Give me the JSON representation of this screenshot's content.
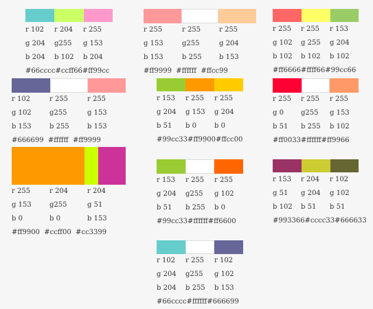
{
  "palettes": [
    {
      "colors": [
        "#66cccc",
        "#ccff66",
        "#ff99cc"
      ],
      "r": [
        "r 102",
        "r 204",
        "r 255"
      ],
      "g": [
        "g 204",
        "g255",
        "g 153"
      ],
      "b": [
        "b 204",
        "b 102",
        "b 204"
      ],
      "hex": "#66cccc#ccff66#ff99cc"
    },
    {
      "colors": [
        "#ff9999",
        "#ffffff",
        "#ffcc99"
      ],
      "r": [
        "r 255",
        "r 255",
        "r 255"
      ],
      "g": [
        "g 153",
        "g255",
        "g 204"
      ],
      "b": [
        "b 153",
        "b 255",
        "b 153"
      ],
      "hex": "#ff9999  #ffffff  #ffcc99"
    },
    {
      "colors": [
        "#ff6666",
        "#ffff66",
        "#99cc66"
      ],
      "r": [
        "r 255",
        "r 255",
        "r 153"
      ],
      "g": [
        "g 102",
        "g 255",
        "g 204"
      ],
      "b": [
        "b 102",
        "b 102",
        "b 102"
      ],
      "hex": "#ff6666#ffff66#99cc66"
    },
    {
      "colors": [
        "#666699",
        "#ffffff",
        "#ff9999"
      ],
      "r": [
        "r 102",
        "r 255",
        "r 255"
      ],
      "g": [
        "g 102",
        "g255",
        "g 153"
      ],
      "b": [
        "b 153",
        "b 255",
        "b 153"
      ],
      "hex": "#666699  #ffffff  #ff9999"
    },
    {
      "colors": [
        "#99cc33",
        "#ff9900",
        "#ffcc00"
      ],
      "r": [
        "r 153",
        "r 255",
        "r 255"
      ],
      "g": [
        "g 204",
        "g 153",
        "g 204"
      ],
      "b": [
        "b 51",
        "b 0",
        "b 0"
      ],
      "hex": "#99cc33#ff9900#ffcc00"
    },
    {
      "colors": [
        "#ff0033",
        "#ffffff",
        "#ff9966"
      ],
      "r": [
        "r 255",
        "r 255",
        "r 255"
      ],
      "g": [
        "g 0",
        "g255",
        "g 153"
      ],
      "b": [
        "b 51",
        "b 255",
        "b 102"
      ],
      "hex": "#ff0033#ffffff#ff9966"
    },
    {
      "colors": [
        "#ff9900",
        "#ccff00",
        "#cc3399"
      ],
      "r": [
        "r 255",
        "r 204",
        "r 204"
      ],
      "g": [
        "g 153",
        "g255",
        "g 51"
      ],
      "b": [
        "b 0",
        "b 0",
        "b 153"
      ],
      "hex": "#ff9900  #ccff00  #cc3399"
    },
    {
      "colors": [
        "#99cc33",
        "#ffffff",
        "#ff6600"
      ],
      "r": [
        "r 153",
        "r 255",
        "r 255"
      ],
      "g": [
        "g 204",
        "g255",
        "g 102"
      ],
      "b": [
        "b 51",
        "b 255",
        "b 0"
      ],
      "hex": "#99cc33#ffffff#ff6600"
    },
    {
      "colors": [
        "#993366",
        "#cccc33",
        "#666633"
      ],
      "r": [
        "r 153",
        "r 204",
        "r 102"
      ],
      "g": [
        "g 51",
        "g 204",
        "g 102"
      ],
      "b": [
        "b 102",
        "b 51",
        "b 51"
      ],
      "hex": "#993366#cccc33#666633"
    },
    {
      "colors": [
        "#66cccc",
        "#ffffff",
        "#666699"
      ],
      "r": [
        "r 102",
        "r 255",
        "r 102"
      ],
      "g": [
        "g 204",
        "g255",
        "g 102"
      ],
      "b": [
        "b 204",
        "b 255",
        "b 153"
      ],
      "hex": "#66cccc#ffffff#666699"
    }
  ]
}
